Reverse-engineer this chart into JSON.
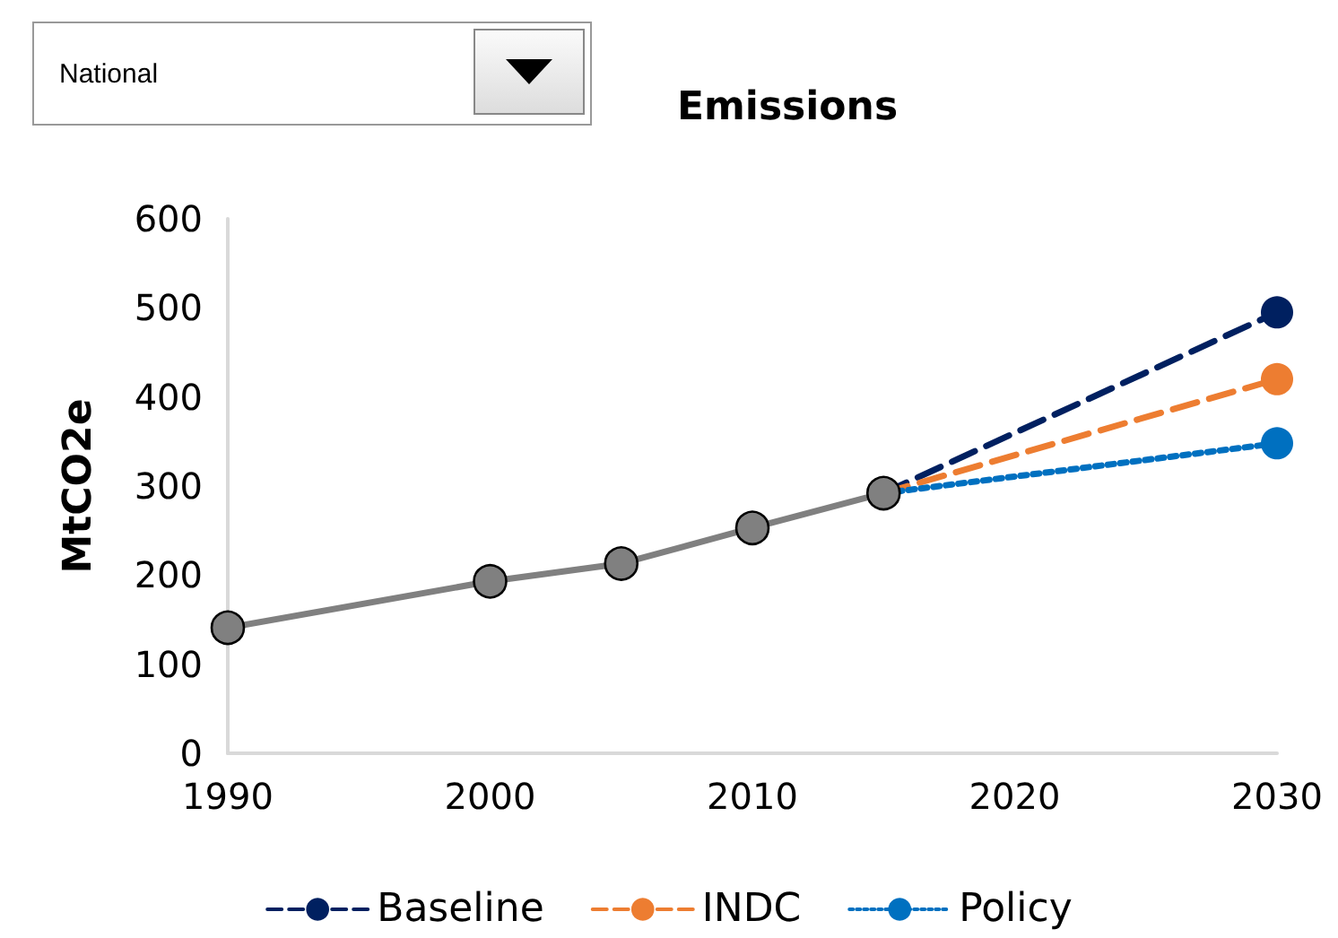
{
  "chart_data": {
    "type": "line",
    "title": "Emissions",
    "ylabel": "MtCO2e",
    "annotations": [
      "National"
    ],
    "xlim": [
      1990,
      2030
    ],
    "xticks": [
      1990,
      2000,
      2010,
      2020,
      2030
    ],
    "ylim": [
      0,
      600
    ],
    "yticks": [
      0,
      100,
      200,
      300,
      400,
      500,
      600
    ],
    "grid": false,
    "legend": "bottom",
    "marker": "circle",
    "series": [
      {
        "name": "Baseline",
        "color": "#002060",
        "x": [
          2015,
          2030
        ],
        "values": [
          292,
          495
        ],
        "line_style": "dashed"
      },
      {
        "name": "INDC",
        "color": "#ed7d31",
        "x": [
          2015,
          2030
        ],
        "values": [
          292,
          420
        ],
        "line_style": "dashed"
      },
      {
        "name": "Policy",
        "color": "#0070c0",
        "x": [
          2015,
          2030
        ],
        "values": [
          292,
          348
        ],
        "line_style": "dotted"
      },
      {
        "color": "#808080",
        "x": [
          1990,
          2000,
          2005,
          2010,
          2015
        ],
        "values": [
          141,
          193,
          213,
          253,
          292
        ],
        "line_style": "solid"
      }
    ]
  }
}
